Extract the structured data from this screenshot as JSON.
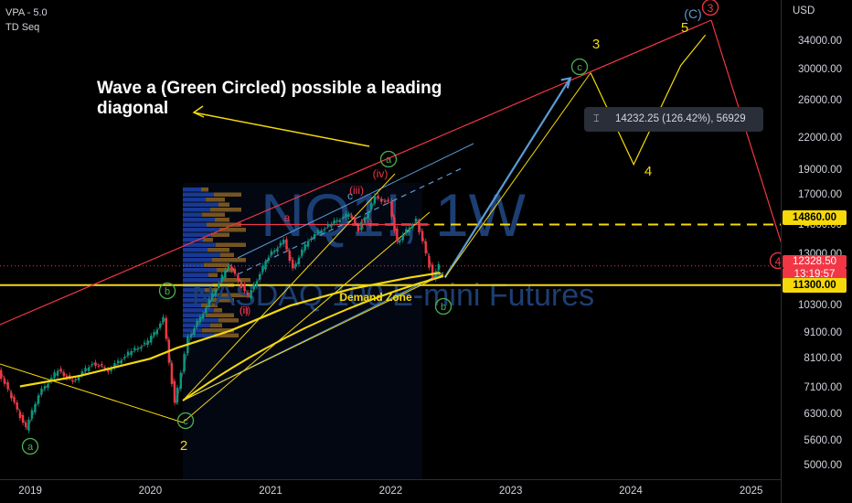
{
  "indicators": {
    "vpa": "VPA - 5.0",
    "td": "TD Seq"
  },
  "watermark": {
    "symbol": "NQ1!, 1W",
    "name": "NASDAQ 100 E-mini Futures"
  },
  "annotation": {
    "line1": "Wave a (Green Circled) possible a leading",
    "line2": "diagonal"
  },
  "measure": {
    "icon": "⌶",
    "text": "14232.25 (126.42%), 56929"
  },
  "labels": {
    "demand_zone": "Demand Zone",
    "green_a1": "a",
    "green_b1": "b",
    "green_c1": "c",
    "green_a2": "a",
    "green_b2": "b",
    "green_c2": "c",
    "red_i": "(i)",
    "red_ii": "(ii)",
    "red_iii": "(iii)",
    "red_iv": "(iv)",
    "red_v": "(v)",
    "red_4": "4",
    "red_3": "3",
    "blue_C": "(C)",
    "blue_c": "c",
    "red_a": "a",
    "yel_2": "2",
    "yel_3": "3",
    "yel_4": "4",
    "yel_5": "5"
  },
  "chart_data": {
    "type": "line",
    "symbol": "NQ1!",
    "timeframe": "1W",
    "yunit": "USD",
    "ylim": [
      4700,
      41000
    ],
    "y_scale": "log",
    "xlim": [
      "2018-10-01",
      "2025-04-01"
    ],
    "x_ticks": [
      "2019",
      "2020",
      "2021",
      "2022",
      "2023",
      "2024",
      "2025"
    ],
    "y_ticks": [
      5000,
      5600,
      6300,
      7100,
      8100,
      9100,
      10300,
      11700,
      13000,
      14860,
      17000,
      19000,
      22000,
      26000,
      30000,
      34000
    ],
    "series": [
      {
        "values": [
          [
            "2018-10-01",
            7700
          ],
          [
            "2018-11-01",
            7000
          ],
          [
            "2018-12-24",
            5900
          ],
          [
            "2019-02-01",
            6900
          ],
          [
            "2019-04-01",
            7700
          ],
          [
            "2019-05-15",
            7300
          ],
          [
            "2019-07-15",
            7950
          ],
          [
            "2019-09-01",
            7700
          ],
          [
            "2019-11-01",
            8300
          ],
          [
            "2019-12-31",
            8750
          ],
          [
            "2020-02-15",
            9700
          ],
          [
            "2020-03-20",
            6600
          ],
          [
            "2020-05-01",
            8900
          ],
          [
            "2020-06-15",
            10000
          ],
          [
            "2020-09-01",
            12400
          ],
          [
            "2020-10-30",
            10700
          ],
          [
            "2020-12-31",
            12900
          ],
          [
            "2021-02-15",
            13800
          ],
          [
            "2021-03-15",
            12200
          ],
          [
            "2021-05-01",
            13900
          ],
          [
            "2021-07-01",
            14800
          ],
          [
            "2021-09-01",
            15600
          ],
          [
            "2021-10-01",
            14500
          ],
          [
            "2021-11-20",
            16800
          ],
          [
            "2022-01-01",
            16400
          ],
          [
            "2022-01-25",
            13700
          ],
          [
            "2022-03-25",
            15200
          ],
          [
            "2022-05-15",
            11700
          ],
          [
            "2022-06-01",
            12328.5
          ]
        ]
      }
    ],
    "price_levels": {
      "current": 12328.5,
      "countdown": "13:19:57",
      "resistance": 14860.0,
      "support": 11300.0
    },
    "projection": [
      [
        "2022-06-15",
        11700
      ],
      [
        "2023-07-01",
        28800
      ],
      [
        "2023-09-01",
        29500
      ],
      [
        "2024-01-10",
        19500
      ],
      [
        "2024-06-01",
        30500
      ],
      [
        "2024-08-15",
        35000
      ],
      [
        "2025-04-01",
        12800
      ]
    ],
    "colors": {
      "up": "#089981",
      "down": "#f23645",
      "ma": "#f5d90a",
      "trend_red": "#f23645",
      "trend_yellow": "#f5d90a",
      "trend_blue": "#5b9bd5",
      "resistance": "#f5d90a",
      "support": "#f5d90a"
    }
  },
  "axis_badges": {
    "current": "12328.50",
    "countdown": "13:19:57",
    "resistance": "14860.00",
    "support": "11300.00"
  }
}
